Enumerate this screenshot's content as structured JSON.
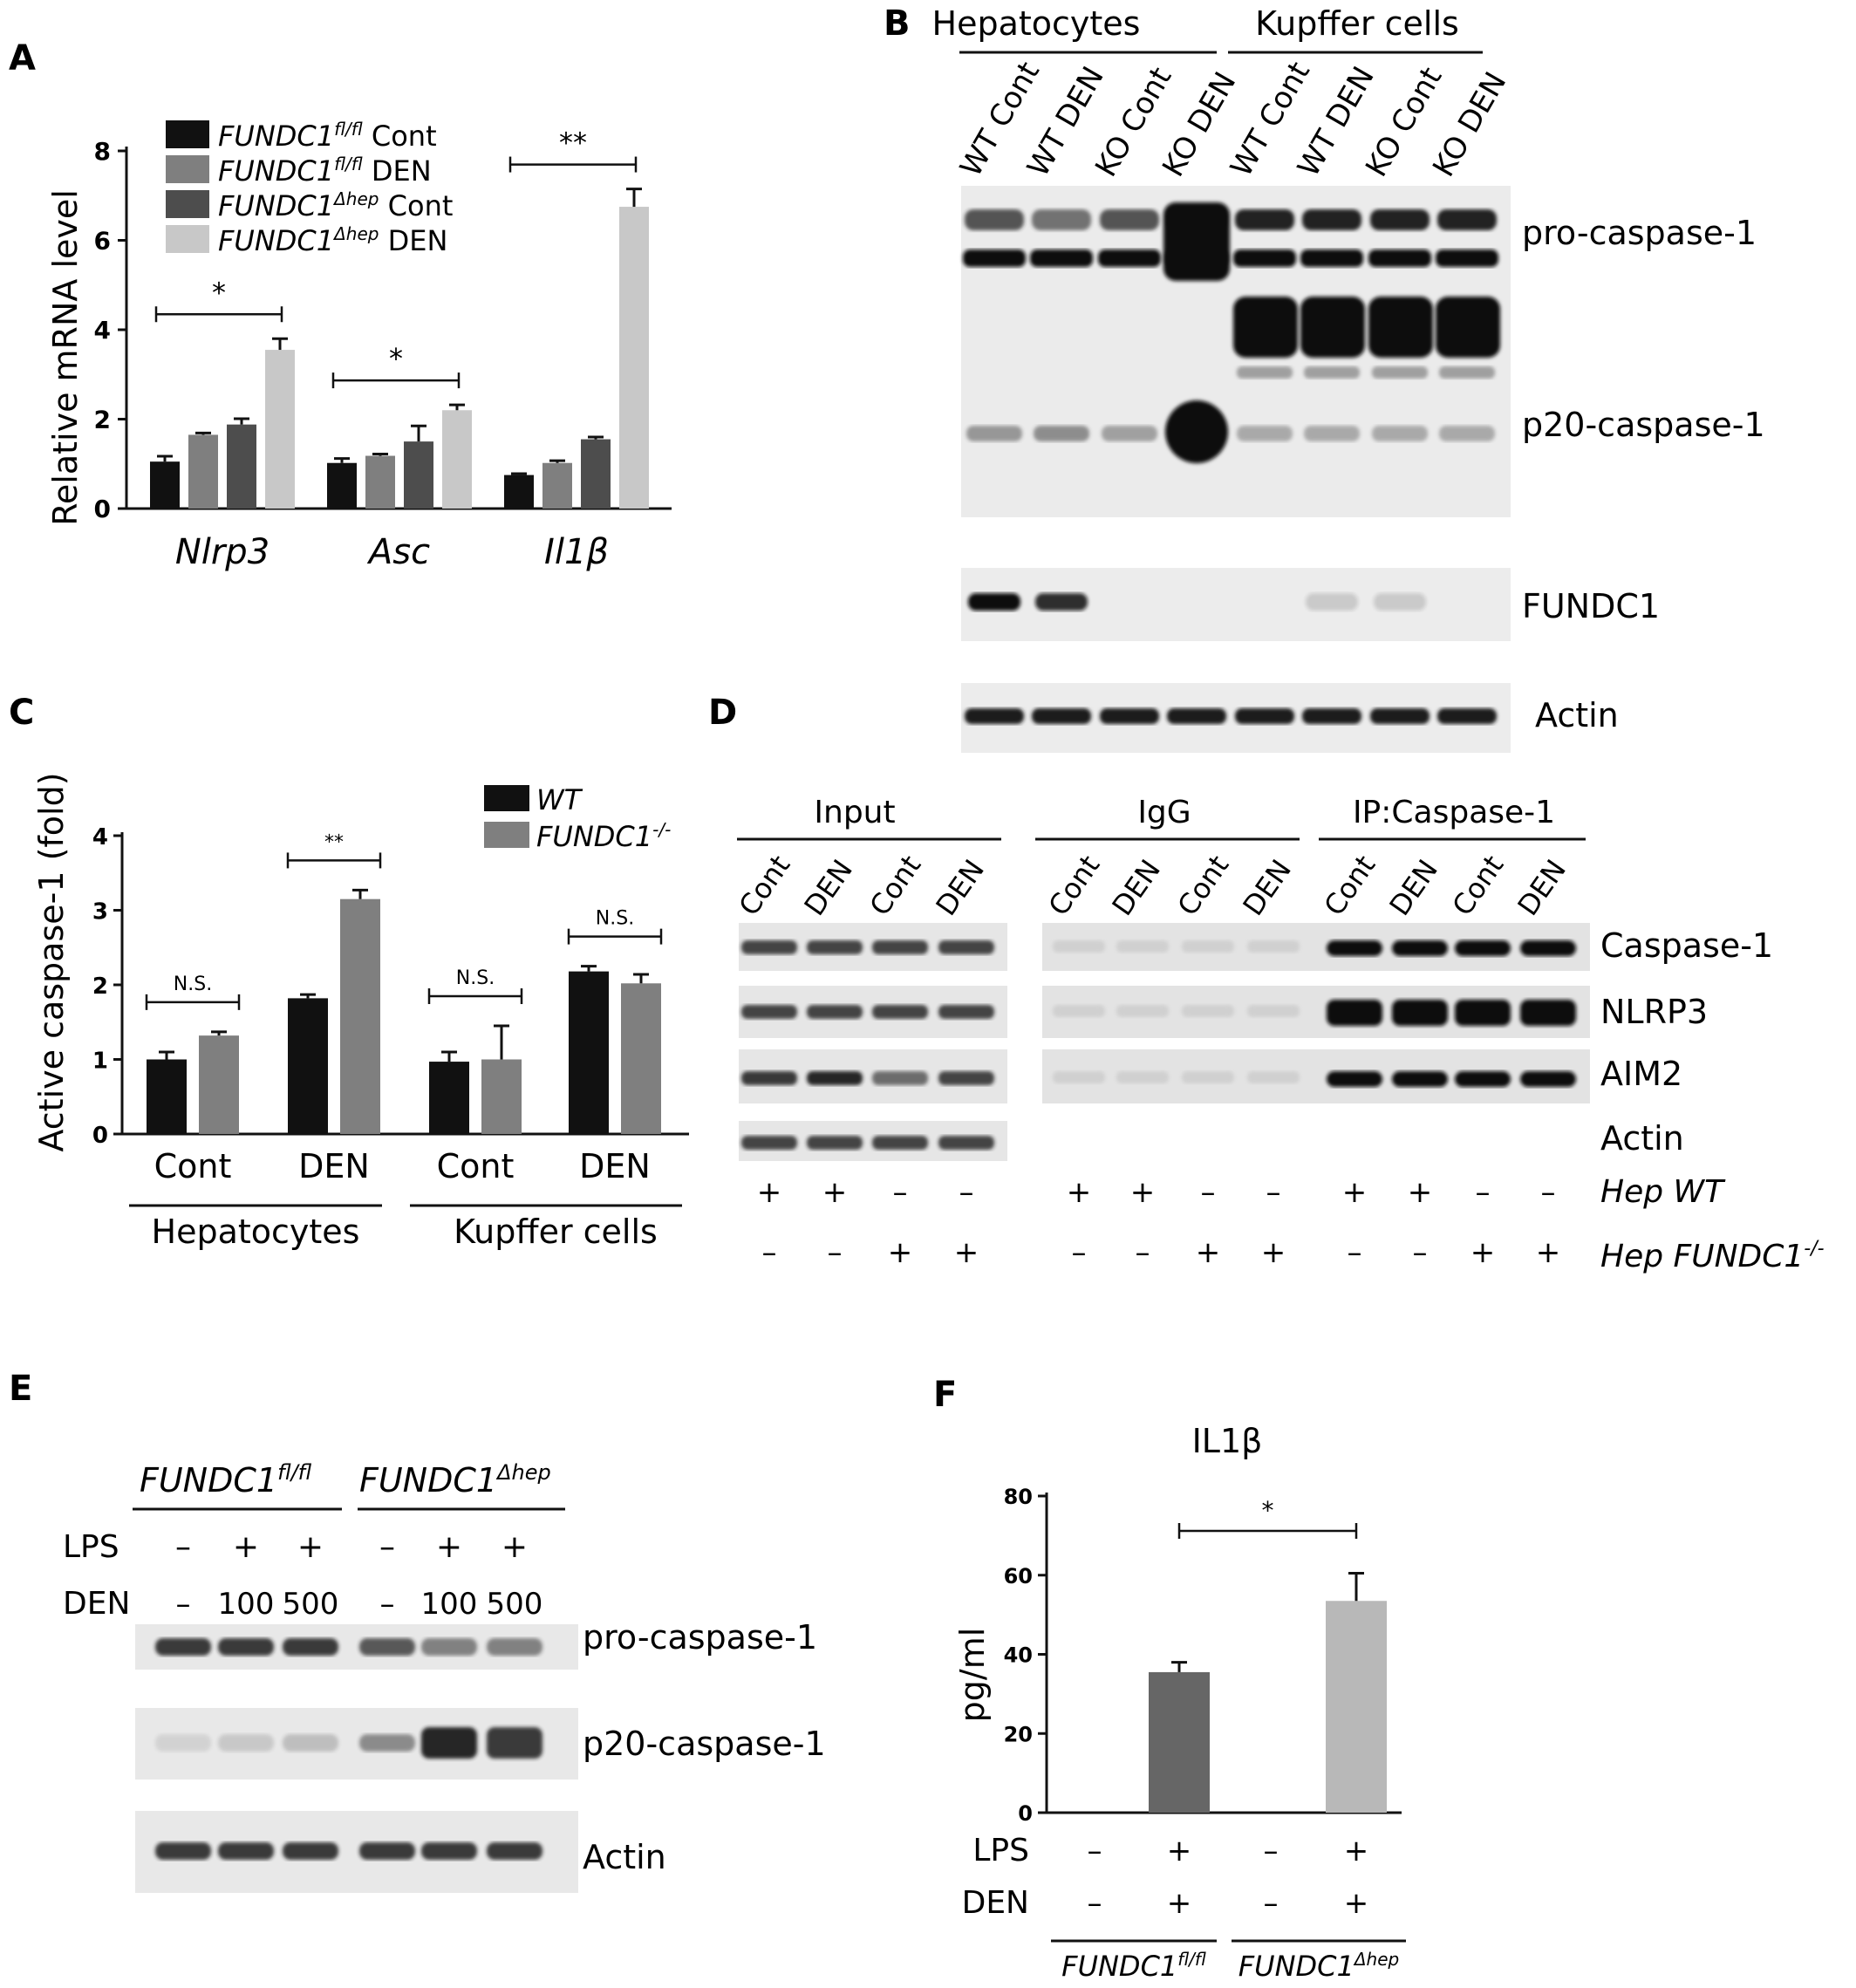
{
  "panels": {
    "A": {
      "label": "A",
      "chart_data": {
        "type": "bar",
        "ylabel": "Relative mRNA level",
        "ylim": [
          0,
          8
        ],
        "yticks": [
          "0",
          "2",
          "4",
          "6",
          "8"
        ],
        "categories": [
          "Nlrp3",
          "Asc",
          "Il1β"
        ],
        "series": [
          {
            "name_base": "FUNDC1",
            "name_sup": "fl/fl",
            "name_rest": " Cont",
            "color": "#111111",
            "values": [
              1.05,
              1.02,
              0.75
            ],
            "errors": [
              0.12,
              0.1,
              0.03
            ]
          },
          {
            "name_base": "FUNDC1",
            "name_sup": "fl/fl",
            "name_rest": " DEN",
            "color": "#7f7f7f",
            "values": [
              1.65,
              1.18,
              1.02
            ],
            "errors": [
              0.04,
              0.04,
              0.05
            ]
          },
          {
            "name_base": "FUNDC1",
            "name_sup": "Δhep",
            "name_rest": " Cont",
            "color": "#4d4d4d",
            "values": [
              1.88,
              1.5,
              1.55
            ],
            "errors": [
              0.13,
              0.35,
              0.05
            ]
          },
          {
            "name_base": "FUNDC1",
            "name_sup": "Δhep",
            "name_rest": " DEN",
            "color": "#c8c8c8",
            "values": [
              3.55,
              2.2,
              6.75
            ],
            "errors": [
              0.25,
              0.12,
              0.4
            ]
          }
        ],
        "significance": [
          "*",
          "*",
          "**"
        ]
      }
    },
    "B": {
      "label": "B",
      "groups": [
        "Hepatocytes",
        "Kupffer cells"
      ],
      "lanes": [
        "WT Cont",
        "WT DEN",
        "KO Cont",
        "KO DEN",
        "WT Cont",
        "WT DEN",
        "KO Cont",
        "KO DEN"
      ],
      "bands": [
        "pro-caspase-1",
        "p20-caspase-1",
        "FUNDC1",
        "Actin"
      ]
    },
    "C": {
      "label": "C",
      "chart_data": {
        "type": "bar",
        "ylabel": "Active caspase-1 (fold)",
        "ylim": [
          0,
          4
        ],
        "yticks": [
          "0",
          "1",
          "2",
          "3",
          "4"
        ],
        "categories": [
          "Cont",
          "DEN",
          "Cont",
          "DEN"
        ],
        "groups": [
          "Hepatocytes",
          "Kupffer cells"
        ],
        "series": [
          {
            "name_base": "WT",
            "name_sup": "",
            "color": "#111111",
            "values": [
              1.0,
              1.82,
              0.97,
              2.18
            ],
            "errors": [
              0.1,
              0.05,
              0.13,
              0.07
            ]
          },
          {
            "name_base": "FUNDC1",
            "name_sup": "-/-",
            "color": "#7f7f7f",
            "values": [
              1.32,
              3.15,
              1.0,
              2.02
            ],
            "errors": [
              0.05,
              0.12,
              0.45,
              0.12
            ]
          }
        ],
        "significance": [
          "N.S.",
          "**",
          "N.S.",
          "N.S."
        ]
      }
    },
    "D": {
      "label": "D",
      "groups": [
        "Input",
        "IgG",
        "IP:Caspase-1"
      ],
      "lane_labels": [
        "Cont",
        "DEN",
        "Cont",
        "DEN"
      ],
      "bands": [
        "Caspase-1",
        "NLRP3",
        "AIM2",
        "Actin"
      ],
      "row1_label": "Hep WT",
      "row2_label_base": "Hep FUNDC1",
      "row2_label_sup": "-/-",
      "row1_signs": [
        "+",
        "+",
        "–",
        "–"
      ],
      "row2_signs": [
        "–",
        "–",
        "+",
        "+"
      ]
    },
    "E": {
      "label": "E",
      "group1_base": "FUNDC1",
      "group1_sup": "fl/fl",
      "group2_base": "FUNDC1",
      "group2_sup": "Δhep",
      "lps_label": "LPS",
      "den_label": "DEN",
      "lps_signs": [
        "–",
        "+",
        "+",
        "–",
        "+",
        "+"
      ],
      "den_values": [
        "–",
        "100",
        "500",
        "–",
        "100",
        "500"
      ],
      "bands": [
        "pro-caspase-1",
        "p20-caspase-1",
        "Actin"
      ]
    },
    "F": {
      "label": "F",
      "chart_data": {
        "type": "bar",
        "title": "IL1β",
        "ylabel": "pg/ml",
        "ylim": [
          0,
          80
        ],
        "yticks": [
          "0",
          "20",
          "40",
          "60",
          "80"
        ],
        "values": [
          0,
          35.5,
          0,
          53.5
        ],
        "errors": [
          0,
          2.5,
          0,
          7
        ],
        "colors": [
          "#666666",
          "#666666",
          "#b8b8b8",
          "#b8b8b8"
        ],
        "significance": "*",
        "lps_label": "LPS",
        "den_label": "DEN",
        "lps_signs": [
          "–",
          "+",
          "–",
          "+"
        ],
        "den_signs": [
          "–",
          "+",
          "–",
          "+"
        ],
        "group1_base": "FUNDC1",
        "group1_sup": "fl/fl",
        "group2_base": "FUNDC1",
        "group2_sup": "Δhep"
      }
    }
  }
}
